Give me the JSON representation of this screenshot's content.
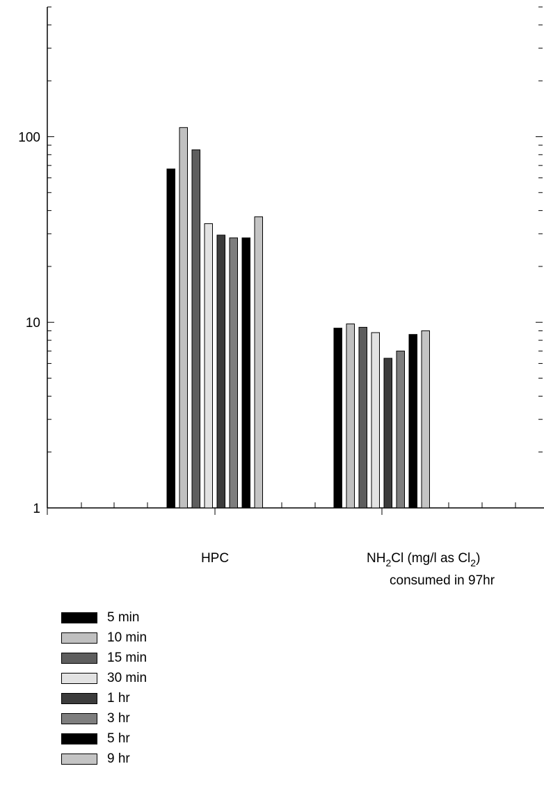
{
  "chart_data": {
    "type": "bar",
    "yscale": "log",
    "ylim": [
      1,
      500
    ],
    "yticks": [
      {
        "value": 1,
        "label": "1"
      },
      {
        "value": 10,
        "label": "10"
      },
      {
        "value": 100,
        "label": "100"
      }
    ],
    "categories": [
      {
        "label": "HPC"
      },
      {
        "label_parts": [
          "NH",
          "2",
          "Cl (mg/l as Cl",
          "2",
          ")"
        ],
        "label_line2": "consumed in 97hr"
      }
    ],
    "series": [
      {
        "name": "5 min",
        "color": "#000000",
        "values": [
          67,
          9.3
        ]
      },
      {
        "name": "10 min",
        "color": "#c0c0c0",
        "values": [
          112,
          9.8
        ]
      },
      {
        "name": "15 min",
        "color": "#5e5e5e",
        "values": [
          85,
          9.4
        ]
      },
      {
        "name": "30 min",
        "color": "#e2e2e2",
        "values": [
          34,
          8.8
        ]
      },
      {
        "name": "1 hr",
        "color": "#3c3c3c",
        "values": [
          29.5,
          6.4
        ]
      },
      {
        "name": "3 hr",
        "color": "#7e7e7e",
        "values": [
          28.5,
          7.0
        ]
      },
      {
        "name": "5 hr",
        "color": "#000000",
        "values": [
          28.5,
          8.6
        ]
      },
      {
        "name": "9 hr",
        "color": "#c4c4c4",
        "values": [
          37,
          9.0
        ]
      }
    ],
    "grid": false,
    "legend_position": "bottom-left"
  }
}
